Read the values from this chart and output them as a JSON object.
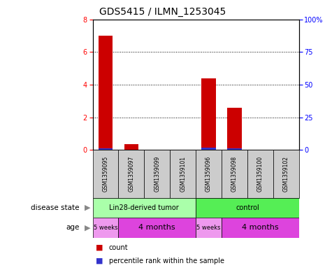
{
  "title": "GDS5415 / ILMN_1253045",
  "samples": [
    "GSM1359095",
    "GSM1359097",
    "GSM1359099",
    "GSM1359101",
    "GSM1359096",
    "GSM1359098",
    "GSM1359100",
    "GSM1359102"
  ],
  "count_values": [
    7.0,
    0.35,
    0.02,
    0.02,
    4.4,
    2.6,
    0.02,
    0.02
  ],
  "percentile_values": [
    1.2,
    0.35,
    0.02,
    0.02,
    1.5,
    1.1,
    0.02,
    0.02
  ],
  "ylim_left": [
    0,
    8
  ],
  "ylim_right": [
    0,
    100
  ],
  "yticks_left": [
    0,
    2,
    4,
    6,
    8
  ],
  "yticks_right": [
    0,
    25,
    50,
    75,
    100
  ],
  "yticklabels_right": [
    "0",
    "25",
    "50",
    "75",
    "100%"
  ],
  "count_color": "#cc0000",
  "percentile_color": "#3333cc",
  "disease_state_groups": [
    {
      "label": "Lin28-derived tumor",
      "start": 0,
      "end": 4,
      "color": "#aaffaa"
    },
    {
      "label": "control",
      "start": 4,
      "end": 8,
      "color": "#55ee55"
    }
  ],
  "age_groups": [
    {
      "label": "5 weeks",
      "start": 0,
      "end": 1,
      "color": "#ee99ee"
    },
    {
      "label": "4 months",
      "start": 1,
      "end": 4,
      "color": "#dd44dd"
    },
    {
      "label": "5 weeks",
      "start": 4,
      "end": 5,
      "color": "#ee99ee"
    },
    {
      "label": "4 months",
      "start": 5,
      "end": 8,
      "color": "#dd44dd"
    }
  ],
  "legend_items": [
    {
      "label": "count",
      "color": "#cc0000"
    },
    {
      "label": "percentile rank within the sample",
      "color": "#3333cc"
    }
  ],
  "background_color": "#ffffff",
  "sample_bg_color": "#cccccc",
  "label_disease_state": "disease state",
  "label_age": "age"
}
